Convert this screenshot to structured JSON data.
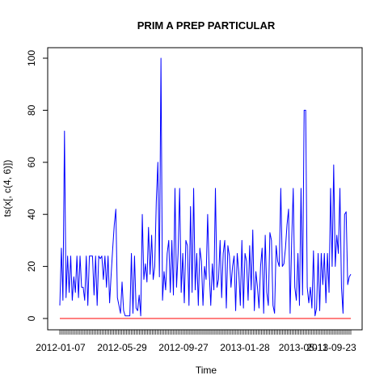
{
  "chart_data": {
    "type": "line",
    "title": "PRIM A PREP PARTICULAR",
    "xlabel": "Time",
    "ylabel": "ts(x[, c(4, 6)])",
    "ylim": [
      0,
      100
    ],
    "yticks": [
      0,
      20,
      40,
      60,
      80,
      100
    ],
    "xtick_labels": [
      "2012-01-07",
      "2012-05-29",
      "2012-09-27",
      "2013-01-28",
      "2013-05-11",
      "2013-09-23"
    ],
    "x_start": "2012-01-07",
    "x_end": "2013-09-23",
    "grid": false,
    "series": [
      {
        "color": "#0000ff",
        "values": [
          5,
          27,
          7,
          72,
          8,
          24,
          10,
          24,
          7,
          16,
          10,
          24,
          8,
          24,
          12,
          12,
          7,
          24,
          5,
          24,
          24,
          24,
          9,
          24,
          5,
          24,
          23,
          24,
          15,
          24,
          12,
          24,
          6,
          17,
          27,
          36,
          42,
          8,
          5,
          2,
          14,
          3,
          1,
          1,
          1,
          1,
          25,
          2,
          24,
          4,
          3,
          9,
          1,
          40,
          15,
          21,
          14,
          35,
          17,
          32,
          15,
          20,
          45,
          60,
          16,
          100,
          7,
          18,
          11,
          25,
          30,
          10,
          30,
          9,
          50,
          12,
          25,
          50,
          10,
          25,
          6,
          30,
          28,
          5,
          43,
          10,
          50,
          11,
          25,
          5,
          27,
          22,
          5,
          20,
          15,
          40,
          18,
          5,
          21,
          11,
          50,
          12,
          15,
          30,
          8,
          25,
          30,
          4,
          28,
          24,
          12,
          20,
          24,
          3,
          25,
          18,
          5,
          30,
          4,
          25,
          22,
          7,
          28,
          11,
          34,
          3,
          18,
          12,
          4,
          20,
          27,
          2,
          32,
          10,
          5,
          33,
          30,
          5,
          2,
          28,
          22,
          20,
          50,
          20,
          21,
          27,
          36,
          42,
          2,
          30,
          50,
          12,
          7,
          25,
          5,
          50,
          9,
          80,
          80,
          12,
          6,
          12,
          4,
          26,
          1,
          4,
          25,
          3,
          25,
          13,
          25,
          6,
          25,
          10,
          50,
          20,
          59,
          20,
          32,
          25,
          50,
          12,
          2,
          40,
          41,
          13,
          16,
          17
        ]
      },
      {
        "color": "#ff0000",
        "values": [
          0,
          0
        ]
      }
    ]
  }
}
